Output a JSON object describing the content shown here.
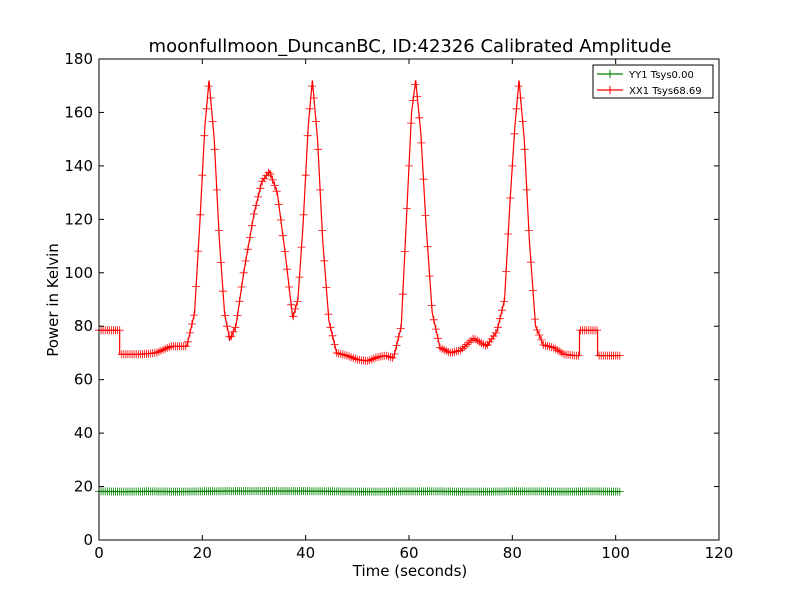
{
  "chart_data": {
    "type": "line",
    "title": "moonfullmoon_DuncanBC, ID:42326 Calibrated Amplitude",
    "xlabel": "Time (seconds)",
    "ylabel": "Power in Kelvin",
    "xlim": [
      0,
      120
    ],
    "ylim": [
      0,
      180
    ],
    "x_ticks": [
      0,
      20,
      40,
      60,
      80,
      100,
      120
    ],
    "y_ticks": [
      0,
      20,
      40,
      60,
      80,
      100,
      120,
      140,
      160,
      180
    ],
    "x_tick_labels": [
      "0",
      "20",
      "40",
      "60",
      "80",
      "100",
      "120"
    ],
    "y_tick_labels": [
      "0",
      "20",
      "40",
      "60",
      "80",
      "100",
      "120",
      "140",
      "160",
      "180"
    ],
    "grid": false,
    "legend_position": "top-right",
    "marker": "+",
    "series": [
      {
        "name": "YY1 Tsys0.00",
        "color": "#008000",
        "x": [
          0,
          5,
          10,
          15,
          20,
          25,
          30,
          35,
          40,
          45,
          50,
          55,
          60,
          65,
          70,
          75,
          80,
          85,
          90,
          95,
          101
        ],
        "y": [
          18.2,
          18.1,
          18.2,
          18.1,
          18.2,
          18.3,
          18.3,
          18.3,
          18.3,
          18.2,
          18.1,
          18.1,
          18.2,
          18.2,
          18.1,
          18.1,
          18.2,
          18.2,
          18.1,
          18.2,
          18.1
        ]
      },
      {
        "name": "XX1 Tsys68.69",
        "color": "#ff0000",
        "x": [
          0,
          4,
          4,
          8,
          11,
          14,
          17,
          18.5,
          19.5,
          20.5,
          21.3,
          22.3,
          23.3,
          24.3,
          25.3,
          26.5,
          28,
          30,
          31.5,
          33,
          34.5,
          36,
          37.5,
          38.5,
          39.5,
          40.5,
          41.3,
          42.3,
          43.3,
          44.5,
          46,
          48,
          50,
          52,
          54,
          55.5,
          57,
          58.5,
          59.5,
          60.5,
          61.3,
          62.3,
          63.3,
          64.5,
          66,
          68,
          70,
          72.5,
          75,
          77,
          78.5,
          79.5,
          80.5,
          81.3,
          82.3,
          83.3,
          84.5,
          86,
          88,
          90,
          92,
          93,
          93,
          96.5,
          96.5,
          101
        ],
        "y": [
          78.5,
          78.5,
          69.5,
          69.5,
          70,
          72.5,
          72.5,
          85,
          118,
          155,
          172,
          150,
          112,
          85,
          75,
          80,
          100,
          122,
          134,
          138,
          130,
          108,
          83,
          90,
          118,
          155,
          172,
          150,
          112,
          82,
          70,
          69,
          67.5,
          67,
          68.5,
          69,
          68,
          80,
          120,
          160,
          172,
          152,
          118,
          85,
          72,
          70,
          71,
          75.5,
          72.5,
          78,
          90,
          125,
          155,
          172,
          150,
          112,
          80,
          73,
          72,
          69.5,
          69,
          69,
          78.5,
          78.5,
          69,
          69
        ]
      }
    ]
  }
}
